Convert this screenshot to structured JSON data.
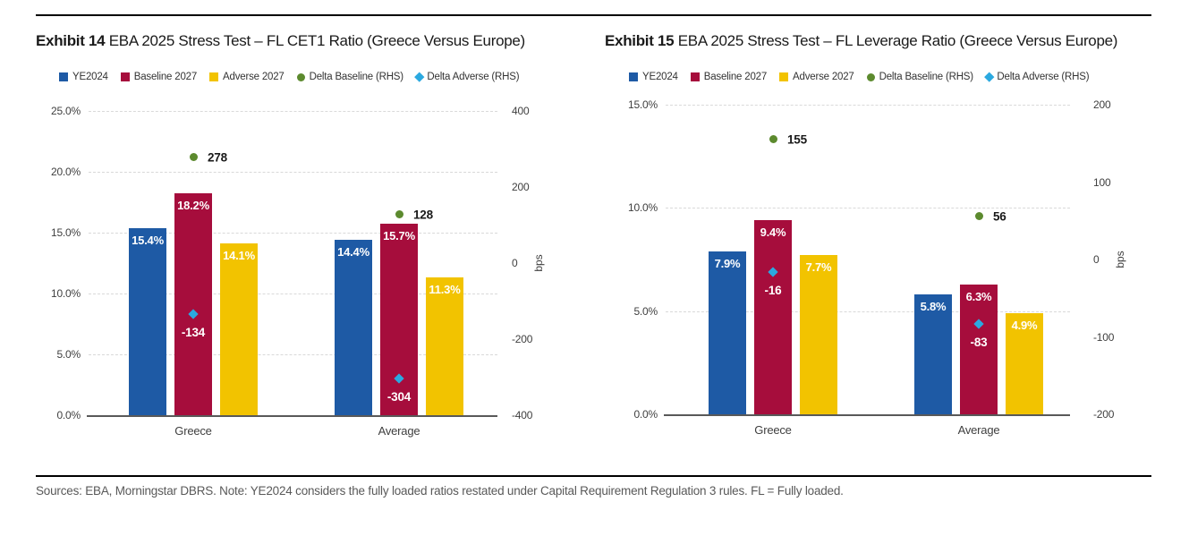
{
  "page": {
    "footer": "Sources: EBA, Morningstar DBRS. Note: YE2024 considers the fully loaded ratios restated under Capital Requirement Regulation 3 rules. FL = Fully loaded."
  },
  "chart_data": [
    {
      "type": "bar",
      "exhibit_label": "Exhibit 14",
      "title": "EBA 2025 Stress Test – FL CET1 Ratio (Greece Versus Europe)",
      "categories": [
        "Greece",
        "Average"
      ],
      "bar_series": [
        {
          "name": "YE2024",
          "color": "#1E5AA5",
          "values": [
            15.4,
            14.4
          ],
          "labels": [
            "15.4%",
            "14.4%"
          ]
        },
        {
          "name": "Baseline 2027",
          "color": "#A60D3C",
          "values": [
            18.2,
            15.7
          ],
          "labels": [
            "18.2%",
            "15.7%"
          ]
        },
        {
          "name": "Adverse 2027",
          "color": "#F2C300",
          "values": [
            14.1,
            11.3
          ],
          "labels": [
            "14.1%",
            "11.3%"
          ]
        }
      ],
      "point_series": [
        {
          "name": "Delta Baseline (RHS)",
          "marker": "circle",
          "color": "#5C8A2E",
          "values": [
            278,
            128
          ],
          "labels": [
            "278",
            "128"
          ],
          "label_color": "#1a1a1a",
          "label_position": "right"
        },
        {
          "name": "Delta Adverse (RHS)",
          "marker": "diamond",
          "color": "#2BA9E0",
          "values": [
            -134,
            -304
          ],
          "labels": [
            "-134",
            "-304"
          ],
          "label_color": "#ffffff",
          "label_position": "below"
        }
      ],
      "left_axis": {
        "min": 0,
        "max": 25,
        "tick_labels": [
          "25.0%",
          "20.0%",
          "15.0%",
          "10.0%",
          "5.0%",
          "0.0%"
        ]
      },
      "right_axis": {
        "min": -400,
        "max": 400,
        "tick_labels": [
          "400",
          "200",
          "0",
          "-200",
          "-400"
        ],
        "title": "bps"
      },
      "grid": true,
      "legend_position": "top"
    },
    {
      "type": "bar",
      "exhibit_label": "Exhibit 15",
      "title": "EBA 2025 Stress Test – FL Leverage Ratio (Greece Versus Europe)",
      "categories": [
        "Greece",
        "Average"
      ],
      "bar_series": [
        {
          "name": "YE2024",
          "color": "#1E5AA5",
          "values": [
            7.9,
            5.8
          ],
          "labels": [
            "7.9%",
            "5.8%"
          ]
        },
        {
          "name": "Baseline 2027",
          "color": "#A60D3C",
          "values": [
            9.4,
            6.3
          ],
          "labels": [
            "9.4%",
            "6.3%"
          ]
        },
        {
          "name": "Adverse 2027",
          "color": "#F2C300",
          "values": [
            7.7,
            4.9
          ],
          "labels": [
            "7.7%",
            "4.9%"
          ]
        }
      ],
      "point_series": [
        {
          "name": "Delta Baseline (RHS)",
          "marker": "circle",
          "color": "#5C8A2E",
          "values": [
            155,
            56
          ],
          "labels": [
            "155",
            "56"
          ],
          "label_color": "#1a1a1a",
          "label_position": "right"
        },
        {
          "name": "Delta Adverse (RHS)",
          "marker": "diamond",
          "color": "#2BA9E0",
          "values": [
            -16,
            -83
          ],
          "labels": [
            "-16",
            "-83"
          ],
          "label_color": "#ffffff",
          "label_position": "below"
        }
      ],
      "left_axis": {
        "min": 0,
        "max": 15,
        "tick_labels": [
          "15.0%",
          "10.0%",
          "5.0%",
          "0.0%"
        ]
      },
      "right_axis": {
        "min": -200,
        "max": 200,
        "tick_labels": [
          "200",
          "100",
          "0",
          "-100",
          "-200"
        ],
        "title": "bps"
      },
      "grid": true,
      "legend_position": "top"
    }
  ]
}
